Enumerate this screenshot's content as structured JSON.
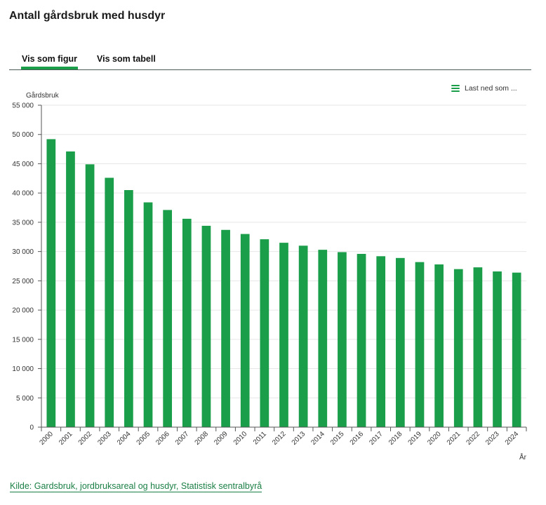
{
  "page": {
    "title": "Antall gårdsbruk med husdyr"
  },
  "tabs": [
    {
      "label": "Vis som figur",
      "active": true
    },
    {
      "label": "Vis som tabell",
      "active": false
    }
  ],
  "download": {
    "label": "Last ned som ...",
    "icon": "menu-icon"
  },
  "source": {
    "label": "Kilde: Gardsbruk, jordbruksareal og husdyr, Statistisk sentralbyrå"
  },
  "colors": {
    "bar": "#1a9e4a",
    "accent": "#1a9e4a",
    "link": "#1a7f45"
  },
  "chart_data": {
    "type": "bar",
    "title": "Antall gårdsbruk med husdyr",
    "xlabel": "År",
    "ylabel": "Gårdsbruk",
    "ylim": [
      0,
      55000
    ],
    "yticks": [
      0,
      5000,
      10000,
      15000,
      20000,
      25000,
      30000,
      35000,
      40000,
      45000,
      50000,
      55000
    ],
    "ytick_labels": [
      "0",
      "5 000",
      "10 000",
      "15 000",
      "20 000",
      "25 000",
      "30 000",
      "35 000",
      "40 000",
      "45 000",
      "50 000",
      "55 000"
    ],
    "grid": true,
    "legend": false,
    "categories": [
      "2000",
      "2001",
      "2002",
      "2003",
      "2004",
      "2005",
      "2006",
      "2007",
      "2008",
      "2009",
      "2010",
      "2011",
      "2012",
      "2013",
      "2014",
      "2015",
      "2016",
      "2017",
      "2018",
      "2019",
      "2020",
      "2021",
      "2022",
      "2023",
      "2024"
    ],
    "values": [
      49200,
      47100,
      44900,
      42600,
      40500,
      38400,
      37100,
      35600,
      34400,
      33700,
      33000,
      32100,
      31500,
      31000,
      30300,
      29900,
      29600,
      29200,
      28900,
      28200,
      27800,
      27000,
      27300,
      26600,
      26400
    ]
  }
}
